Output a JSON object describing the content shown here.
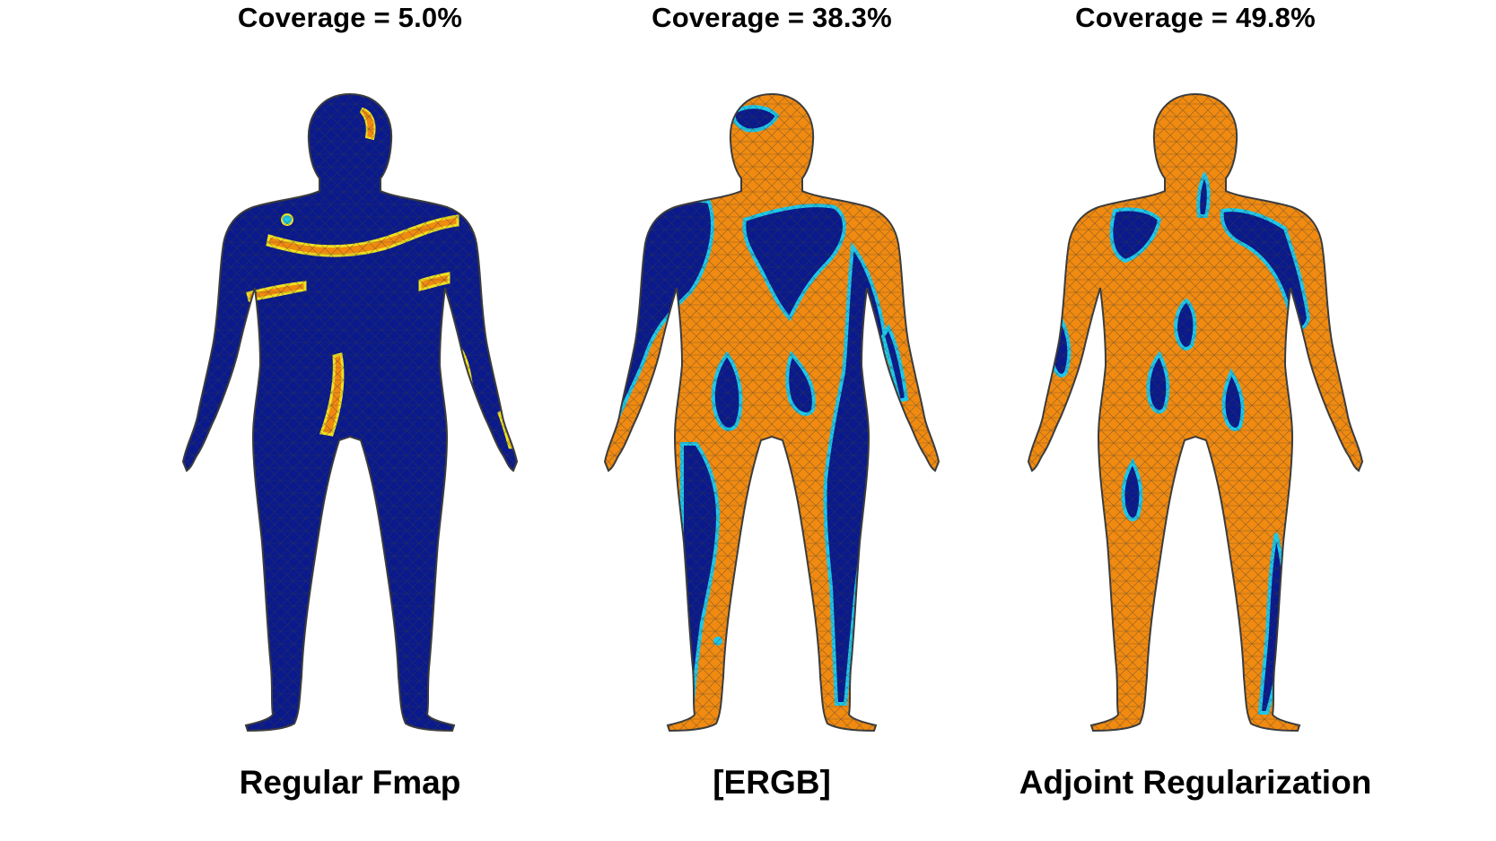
{
  "panels": [
    {
      "coverage_title": "Coverage = 5.0%",
      "method_label": "Regular Fmap",
      "coverage_percent": 5.0
    },
    {
      "coverage_title": "Coverage = 38.3%",
      "method_label": "[ERGB]",
      "coverage_percent": 38.3
    },
    {
      "coverage_title": "Coverage = 49.8%",
      "method_label": "Adjoint Regularization",
      "coverage_percent": 49.8
    }
  ],
  "colors": {
    "uncovered": "#0a1a8c",
    "covered": "#f08a10",
    "boundary": "#1ec8e8",
    "edge_highlight": "#f0e020",
    "mesh_lines": "#3a3a3a",
    "head_hands_feet": "#3c3c3c"
  }
}
